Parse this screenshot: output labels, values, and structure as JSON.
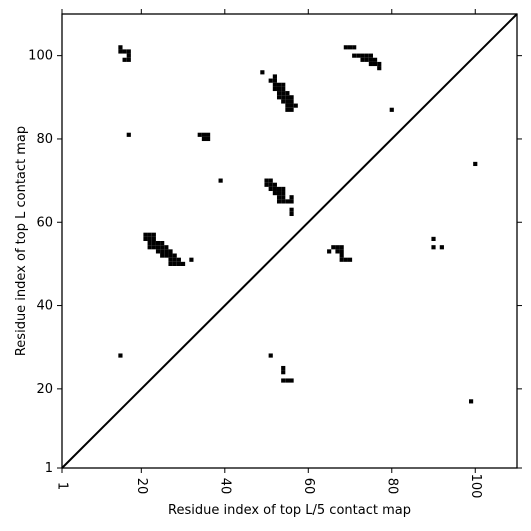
{
  "chart_data": {
    "type": "heatmap",
    "title": "",
    "xlabel": "Residue index of top L/5 contact map",
    "ylabel": "Residue index of top L contact map",
    "xlim": [
      1,
      110
    ],
    "ylim": [
      1,
      110
    ],
    "x_ticks": [
      1,
      20,
      40,
      60,
      80,
      100
    ],
    "y_ticks": [
      1,
      20,
      40,
      60,
      80,
      100
    ],
    "grid": false,
    "diagonal_line": true,
    "cell_color": "#000000",
    "background_color": "#ffffff",
    "upper_triangle_contacts": [
      [
        15,
        101
      ],
      [
        15,
        102
      ],
      [
        16,
        101
      ],
      [
        17,
        101
      ],
      [
        16,
        99
      ],
      [
        17,
        99
      ],
      [
        17,
        100
      ],
      [
        17,
        81
      ],
      [
        34,
        81
      ],
      [
        35,
        81
      ],
      [
        36,
        81
      ],
      [
        35,
        80
      ],
      [
        36,
        80
      ],
      [
        39,
        70
      ],
      [
        49,
        96
      ],
      [
        51,
        94
      ],
      [
        52,
        95
      ],
      [
        52,
        94
      ],
      [
        52,
        93
      ],
      [
        53,
        93
      ],
      [
        54,
        93
      ],
      [
        52,
        92
      ],
      [
        53,
        92
      ],
      [
        54,
        92
      ],
      [
        53,
        91
      ],
      [
        54,
        91
      ],
      [
        55,
        91
      ],
      [
        53,
        90
      ],
      [
        54,
        90
      ],
      [
        55,
        90
      ],
      [
        56,
        90
      ],
      [
        54,
        89
      ],
      [
        55,
        89
      ],
      [
        56,
        89
      ],
      [
        55,
        88
      ],
      [
        56,
        88
      ],
      [
        57,
        88
      ],
      [
        55,
        87
      ],
      [
        56,
        87
      ],
      [
        69,
        102
      ],
      [
        70,
        102
      ],
      [
        71,
        102
      ],
      [
        71,
        100
      ],
      [
        72,
        100
      ],
      [
        73,
        100
      ],
      [
        74,
        100
      ],
      [
        75,
        100
      ],
      [
        73,
        99
      ],
      [
        74,
        99
      ],
      [
        75,
        99
      ],
      [
        76,
        99
      ],
      [
        75,
        98
      ],
      [
        76,
        98
      ],
      [
        77,
        98
      ],
      [
        77,
        97
      ],
      [
        80,
        87
      ],
      [
        100,
        74
      ],
      [
        50,
        70
      ],
      [
        51,
        70
      ],
      [
        50,
        69
      ],
      [
        51,
        69
      ],
      [
        52,
        69
      ],
      [
        51,
        68
      ],
      [
        52,
        68
      ],
      [
        53,
        68
      ],
      [
        54,
        68
      ],
      [
        52,
        67
      ],
      [
        53,
        67
      ],
      [
        54,
        67
      ],
      [
        53,
        66
      ],
      [
        54,
        66
      ],
      [
        56,
        66
      ],
      [
        53,
        65
      ],
      [
        54,
        65
      ],
      [
        55,
        65
      ],
      [
        56,
        65
      ],
      [
        56,
        63
      ],
      [
        56,
        62
      ],
      [
        21,
        57
      ],
      [
        22,
        57
      ],
      [
        23,
        57
      ],
      [
        21,
        56
      ],
      [
        22,
        56
      ],
      [
        23,
        56
      ],
      [
        22,
        55
      ],
      [
        23,
        55
      ],
      [
        24,
        55
      ],
      [
        25,
        55
      ],
      [
        22,
        54
      ],
      [
        23,
        54
      ],
      [
        24,
        54
      ],
      [
        25,
        54
      ],
      [
        26,
        54
      ],
      [
        24,
        53
      ],
      [
        25,
        53
      ],
      [
        26,
        53
      ],
      [
        27,
        53
      ],
      [
        25,
        52
      ],
      [
        26,
        52
      ],
      [
        27,
        52
      ],
      [
        28,
        52
      ],
      [
        27,
        51
      ],
      [
        28,
        51
      ],
      [
        29,
        51
      ],
      [
        32,
        51
      ],
      [
        27,
        50
      ],
      [
        28,
        50
      ],
      [
        29,
        50
      ],
      [
        30,
        50
      ],
      [
        66,
        54
      ],
      [
        67,
        54
      ],
      [
        68,
        54
      ],
      [
        65,
        53
      ],
      [
        67,
        53
      ],
      [
        68,
        53
      ],
      [
        68,
        52
      ],
      [
        68,
        51
      ],
      [
        69,
        51
      ],
      [
        70,
        51
      ],
      [
        90,
        56
      ],
      [
        90,
        54
      ],
      [
        92,
        54
      ]
    ],
    "lower_triangle_contacts": [
      [
        15,
        28
      ],
      [
        51,
        28
      ],
      [
        54,
        25
      ],
      [
        54,
        24
      ],
      [
        54,
        22
      ],
      [
        55,
        22
      ],
      [
        56,
        22
      ],
      [
        99,
        17
      ]
    ]
  }
}
